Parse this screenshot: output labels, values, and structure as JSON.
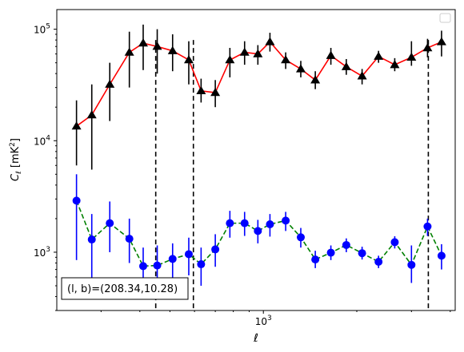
{
  "chart_data": {
    "type": "scatter",
    "title": "",
    "xlabel": "ℓ",
    "ylabel": "C_ℓ  [mK²]",
    "xscale": "log",
    "yscale": "log",
    "xlim": [
      216,
      4150
    ],
    "ylim": [
      300,
      150000
    ],
    "x_tick_labels": [
      {
        "value": 1000,
        "base": "10",
        "exp": "3"
      }
    ],
    "y_tick_labels": [
      {
        "value": 1000,
        "base": "10",
        "exp": "3"
      },
      {
        "value": 10000,
        "base": "10",
        "exp": "4"
      },
      {
        "value": 100000,
        "base": "10",
        "exp": "5"
      }
    ],
    "grid": false,
    "legend": {
      "location": "upper right",
      "entries": []
    },
    "vlines": [
      450,
      595,
      3400
    ],
    "annotation": {
      "text": "(l, b)=(208.34,10.28)",
      "location": "lower left"
    },
    "series": [
      {
        "color": "#000000",
        "line_color": "#ff0000",
        "line_style": "solid",
        "marker": "triangle",
        "points": [
          {
            "x": 250,
            "y": 13500,
            "lo": 6000,
            "hi": 23000
          },
          {
            "x": 280,
            "y": 17000,
            "lo": 5500,
            "hi": 32000
          },
          {
            "x": 320,
            "y": 32000,
            "lo": 15000,
            "hi": 50000
          },
          {
            "x": 370,
            "y": 62000,
            "lo": 30000,
            "hi": 95000
          },
          {
            "x": 410,
            "y": 75000,
            "lo": 43000,
            "hi": 110000
          },
          {
            "x": 455,
            "y": 70000,
            "lo": 40000,
            "hi": 100000
          },
          {
            "x": 510,
            "y": 64000,
            "lo": 42000,
            "hi": 90000
          },
          {
            "x": 575,
            "y": 53000,
            "lo": 32000,
            "hi": 78000
          },
          {
            "x": 630,
            "y": 28000,
            "lo": 22000,
            "hi": 36000
          },
          {
            "x": 700,
            "y": 27000,
            "lo": 20000,
            "hi": 35000
          },
          {
            "x": 780,
            "y": 53000,
            "lo": 37000,
            "hi": 68000
          },
          {
            "x": 870,
            "y": 62000,
            "lo": 48000,
            "hi": 78000
          },
          {
            "x": 960,
            "y": 60000,
            "lo": 48000,
            "hi": 72000
          },
          {
            "x": 1050,
            "y": 77000,
            "lo": 63000,
            "hi": 93000
          },
          {
            "x": 1180,
            "y": 53000,
            "lo": 44000,
            "hi": 62000
          },
          {
            "x": 1320,
            "y": 44000,
            "lo": 37000,
            "hi": 52000
          },
          {
            "x": 1470,
            "y": 35000,
            "lo": 29000,
            "hi": 42000
          },
          {
            "x": 1650,
            "y": 58000,
            "lo": 48000,
            "hi": 68000
          },
          {
            "x": 1850,
            "y": 46000,
            "lo": 39000,
            "hi": 54000
          },
          {
            "x": 2080,
            "y": 38000,
            "lo": 32000,
            "hi": 44000
          },
          {
            "x": 2350,
            "y": 57000,
            "lo": 50000,
            "hi": 64000
          },
          {
            "x": 2650,
            "y": 48000,
            "lo": 42000,
            "hi": 55000
          },
          {
            "x": 3000,
            "y": 56000,
            "lo": 47000,
            "hi": 78000
          },
          {
            "x": 3380,
            "y": 68000,
            "lo": 56000,
            "hi": 82000
          },
          {
            "x": 3750,
            "y": 77000,
            "lo": 57000,
            "hi": 97000
          }
        ]
      },
      {
        "color": "#0000ff",
        "line_color": "#008000",
        "line_style": "dashed",
        "marker": "circle",
        "points": [
          {
            "x": 250,
            "y": 2900,
            "lo": 850,
            "hi": 5000
          },
          {
            "x": 280,
            "y": 1300,
            "lo": 550,
            "hi": 2200
          },
          {
            "x": 320,
            "y": 1820,
            "lo": 1000,
            "hi": 2850
          },
          {
            "x": 370,
            "y": 1320,
            "lo": 800,
            "hi": 2000
          },
          {
            "x": 410,
            "y": 750,
            "lo": 470,
            "hi": 1100
          },
          {
            "x": 455,
            "y": 760,
            "lo": 480,
            "hi": 1150
          },
          {
            "x": 510,
            "y": 870,
            "lo": 580,
            "hi": 1200
          },
          {
            "x": 575,
            "y": 960,
            "lo": 620,
            "hi": 1350
          },
          {
            "x": 630,
            "y": 780,
            "lo": 500,
            "hi": 1100
          },
          {
            "x": 700,
            "y": 1060,
            "lo": 740,
            "hi": 1450
          },
          {
            "x": 780,
            "y": 1820,
            "lo": 1350,
            "hi": 2350
          },
          {
            "x": 870,
            "y": 1820,
            "lo": 1400,
            "hi": 2300
          },
          {
            "x": 960,
            "y": 1550,
            "lo": 1200,
            "hi": 1950
          },
          {
            "x": 1050,
            "y": 1780,
            "lo": 1380,
            "hi": 2200
          },
          {
            "x": 1180,
            "y": 1920,
            "lo": 1550,
            "hi": 2300
          },
          {
            "x": 1320,
            "y": 1360,
            "lo": 1100,
            "hi": 1650
          },
          {
            "x": 1470,
            "y": 860,
            "lo": 720,
            "hi": 1030
          },
          {
            "x": 1650,
            "y": 990,
            "lo": 850,
            "hi": 1150
          },
          {
            "x": 1850,
            "y": 1160,
            "lo": 1000,
            "hi": 1330
          },
          {
            "x": 2080,
            "y": 980,
            "lo": 860,
            "hi": 1120
          },
          {
            "x": 2350,
            "y": 820,
            "lo": 720,
            "hi": 930
          },
          {
            "x": 2650,
            "y": 1230,
            "lo": 1080,
            "hi": 1390
          },
          {
            "x": 3000,
            "y": 770,
            "lo": 530,
            "hi": 1150
          },
          {
            "x": 3380,
            "y": 1700,
            "lo": 1400,
            "hi": 2000
          },
          {
            "x": 3750,
            "y": 930,
            "lo": 700,
            "hi": 1180
          }
        ]
      }
    ]
  }
}
